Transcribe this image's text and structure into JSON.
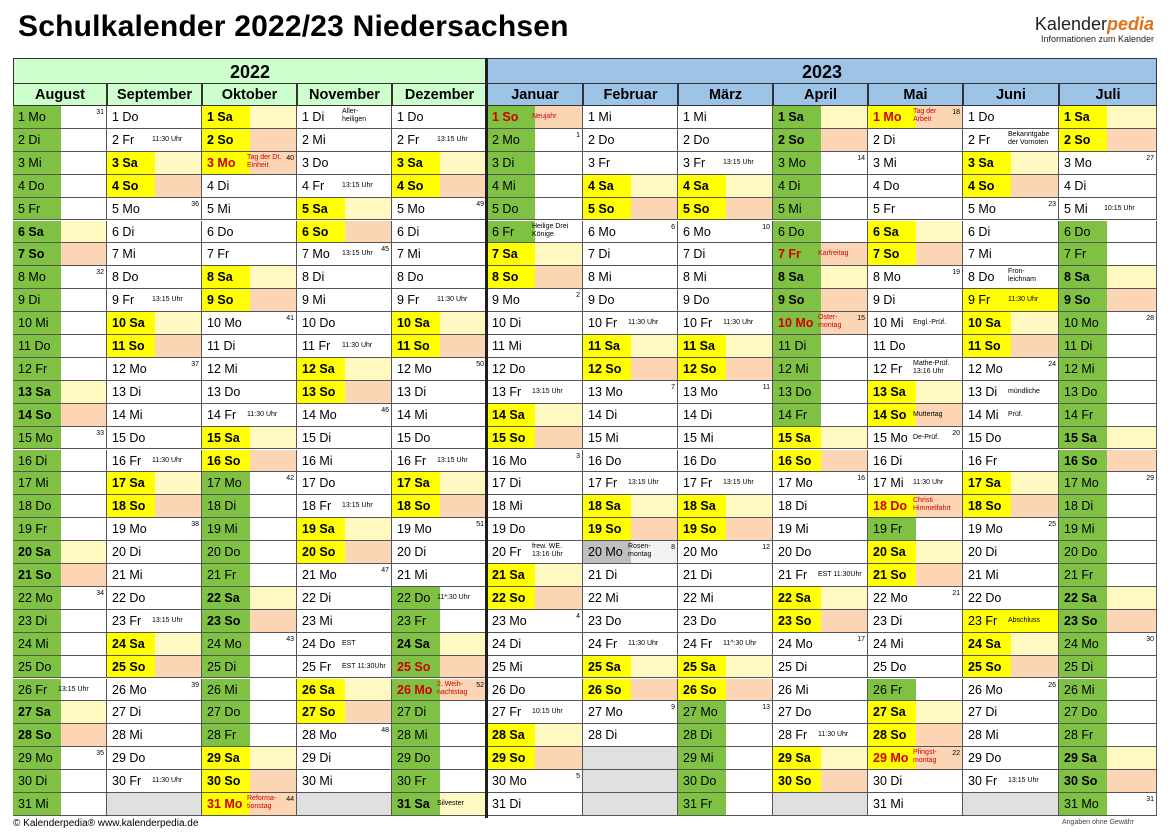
{
  "title": "Schulkalender 2022/23 Niedersachsen",
  "logo": {
    "main": "Kalender",
    "accent": "pedia",
    "sub": "Informationen zum Kalender"
  },
  "years": [
    "2022",
    "2023"
  ],
  "colors": {
    "year2022": "#ccffcc",
    "year2023": "#9dc3e6",
    "holiday": "#7fc143",
    "weekend": "#ffff00",
    "sunday_bg": "#fcd5b4",
    "saturday_bg": "#fff8c0",
    "holiday_text": "#d00000"
  },
  "footer": {
    "left": "© Kalenderpedia®  www.kalenderpedia.de",
    "right": "Angaben ohne Gewähr"
  },
  "months": [
    {
      "name": "August",
      "start": 1,
      "days": 31,
      "hol": [
        [
          1,
          31
        ]
      ],
      "bridge": [],
      "rose": [],
      "ph": [],
      "notes": {
        "26": "13:15 Uhr"
      }
    },
    {
      "name": "September",
      "start": 4,
      "days": 30,
      "hol": [],
      "bridge": [],
      "rose": [],
      "ph": [],
      "notes": {
        "2": "11:30 Uhr",
        "9": "13:15 Uhr",
        "16": "11:30 Uhr",
        "23": "13:15 Uhr",
        "30": "11:30 Uhr"
      }
    },
    {
      "name": "Oktober",
      "start": 6,
      "days": 31,
      "hol": [
        [
          17,
          28
        ]
      ],
      "bridge": [],
      "rose": [],
      "ph": [
        3,
        31
      ],
      "notes": {
        "3": "Tag der Dt.\nEinheit",
        "14": "11:30 Uhr",
        "31": "Reforma-\ntionstag"
      }
    },
    {
      "name": "November",
      "start": 2,
      "days": 30,
      "hol": [],
      "bridge": [],
      "rose": [],
      "ph": [],
      "notes": {
        "1": "Aller-\nheiligen",
        "4": "13:15 Uhr",
        "7": "13:15 Uhr",
        "11": "11:30 Uhr",
        "18": "13:15 Uhr",
        "24": "EST",
        "25": "EST 11:30Uhr"
      }
    },
    {
      "name": "Dezember",
      "start": 4,
      "days": 31,
      "hol": [
        [
          22,
          31
        ]
      ],
      "bridge": [],
      "rose": [],
      "ph": [
        25,
        26
      ],
      "notes": {
        "2": "13:15 Uhr",
        "9": "11:30 Uhr",
        "16": "13:15 Uhr",
        "22": "11*:30 Uhr",
        "26": "2. Weih-\nnachtstag",
        "31": "Silvester"
      }
    },
    {
      "name": "Januar",
      "start": 7,
      "days": 31,
      "hol": [
        [
          1,
          6
        ]
      ],
      "bridge": [],
      "rose": [],
      "ph": [
        1
      ],
      "notes": {
        "1": "Neujahr",
        "6": "Heilige Drei\nKönige",
        "13": "13:15 Uhr",
        "20": "frew. WE.\n13:16 Uhr",
        "27": "10:15 Uhr"
      }
    },
    {
      "name": "Februar",
      "start": 3,
      "days": 28,
      "hol": [],
      "bridge": [],
      "rose": [
        20
      ],
      "ph": [],
      "notes": {
        "10": "11:30 Uhr",
        "17": "13:15 Uhr",
        "20": "Rosen-\nmontag",
        "24": "11:30 Uhr"
      }
    },
    {
      "name": "März",
      "start": 3,
      "days": 31,
      "hol": [
        [
          27,
          31
        ]
      ],
      "bridge": [],
      "rose": [],
      "ph": [],
      "notes": {
        "3": "13:15 Uhr",
        "10": "11:30 Uhr",
        "17": "13:15 Uhr",
        "24": "11^:30 Uhr"
      }
    },
    {
      "name": "April",
      "start": 6,
      "days": 30,
      "hol": [
        [
          1,
          14
        ]
      ],
      "bridge": [],
      "rose": [],
      "ph": [
        7,
        10
      ],
      "notes": {
        "7": "Karfreitag",
        "10": "Oster-\nmontag",
        "21": "EST 11:30Uhr",
        "28": "11:30 Uhr"
      }
    },
    {
      "name": "Mai",
      "start": 1,
      "days": 31,
      "hol": [
        [
          19,
          19
        ],
        [
          26,
          26
        ]
      ],
      "bridge": [],
      "rose": [],
      "ph": [
        1,
        18,
        29
      ],
      "notes": {
        "1": "Tag der\nArbeit",
        "10": "Engl.-Prüf.",
        "12": "Mathe-Prüf.\n13:16 Uhr",
        "14": "Muttertag",
        "15": "De-Prüf.",
        "17": "11:30 Uhr",
        "18": "Christi\nHimmelfahrt",
        "29": "Pfingst-\nmontag"
      }
    },
    {
      "name": "Juni",
      "start": 4,
      "days": 30,
      "hol": [],
      "bridge": [
        [
          9,
          9
        ],
        [
          23,
          23
        ]
      ],
      "rose": [],
      "ph": [],
      "notes": {
        "2": "Bekanntgabe\nder Vornoten",
        "8": "Fron-\nleichnam",
        "9": "11:30 Uhr",
        "13": "mündliche",
        "14": "Prüf.",
        "23": "Abschluss",
        "30": "13:15 Uhr"
      }
    },
    {
      "name": "Juli",
      "start": 6,
      "days": 31,
      "hol": [
        [
          6,
          31
        ]
      ],
      "bridge": [],
      "rose": [],
      "ph": [],
      "notes": {
        "5": "10:15 Uhr"
      }
    }
  ],
  "weekdays": [
    "Mo",
    "Di",
    "Mi",
    "Do",
    "Fr",
    "Sa",
    "So"
  ],
  "week_numbers": {
    "August": {
      "1": "31",
      "8": "32",
      "15": "33",
      "22": "34",
      "29": "35"
    },
    "September": {
      "5": "36",
      "12": "37",
      "19": "38",
      "26": "39"
    },
    "Oktober": {
      "3": "40",
      "10": "41",
      "17": "42",
      "24": "43",
      "31": "44"
    },
    "November": {
      "7": "45",
      "14": "46",
      "21": "47",
      "28": "48"
    },
    "Dezember": {
      "5": "49",
      "12": "50",
      "19": "51",
      "26": "52"
    },
    "Januar": {
      "2": "1",
      "9": "2",
      "16": "3",
      "23": "4",
      "30": "5"
    },
    "Februar": {
      "6": "6",
      "13": "7",
      "20": "8",
      "27": "9"
    },
    "März": {
      "6": "10",
      "13": "11",
      "20": "12",
      "27": "13"
    },
    "April": {
      "3": "14",
      "10": "15",
      "17": "16",
      "24": "17"
    },
    "Mai": {
      "1": "18",
      "8": "19",
      "15": "20",
      "22": "21",
      "29": "22"
    },
    "Juni": {
      "5": "23",
      "12": "24",
      "19": "25",
      "26": "26"
    },
    "Juli": {
      "3": "27",
      "10": "28",
      "17": "29",
      "24": "30",
      "31": "31"
    }
  }
}
